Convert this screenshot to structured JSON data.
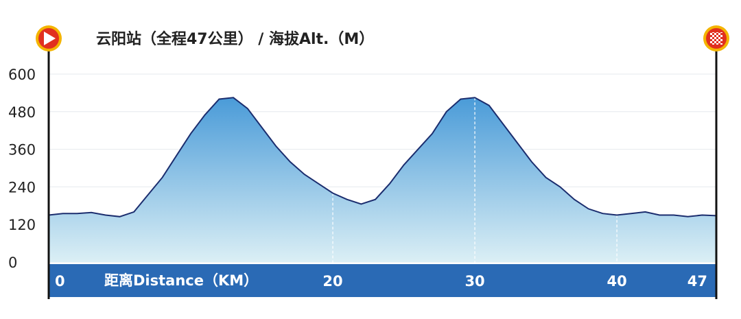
{
  "chart_data": {
    "type": "area",
    "title": "云阳站（全程47公里） / 海拔Alt.（M）",
    "xlabel": "距离Distance（KM）",
    "ylabel": "",
    "xlim": [
      0,
      47
    ],
    "ylim": [
      0,
      600
    ],
    "yticks": [
      0,
      120,
      240,
      360,
      480,
      600
    ],
    "xtick_labels": [
      "0",
      "20",
      "30",
      "40",
      "47"
    ],
    "xtick_values": [
      0,
      20,
      30,
      40,
      47
    ],
    "dashed_markers": [
      20,
      30,
      40
    ],
    "grid": true,
    "x": [
      0,
      1,
      2,
      3,
      4,
      5,
      6,
      7,
      8,
      9,
      10,
      11,
      12,
      13,
      14,
      15,
      16,
      17,
      18,
      19,
      20,
      21,
      22,
      23,
      24,
      25,
      26,
      27,
      28,
      29,
      30,
      31,
      32,
      33,
      34,
      35,
      36,
      37,
      38,
      39,
      40,
      41,
      42,
      43,
      44,
      45,
      46,
      47
    ],
    "y": [
      150,
      155,
      155,
      158,
      150,
      145,
      160,
      215,
      270,
      340,
      410,
      470,
      520,
      525,
      490,
      430,
      370,
      320,
      280,
      250,
      220,
      200,
      185,
      200,
      250,
      310,
      360,
      410,
      480,
      520,
      525,
      500,
      440,
      380,
      320,
      270,
      240,
      200,
      170,
      155,
      150,
      155,
      160,
      150,
      150,
      145,
      150,
      148
    ],
    "colors": {
      "fill_top": "#4a9bd8",
      "fill_bottom": "#dbeff5",
      "line": "#1b2d6e",
      "axis_band": "#2a6ab5",
      "start_icon": "#e1301f",
      "finish_icon": "#e1301f",
      "icon_ring": "#f4b400"
    },
    "start_icon": "play-icon",
    "finish_icon": "checkered-flag-icon"
  }
}
